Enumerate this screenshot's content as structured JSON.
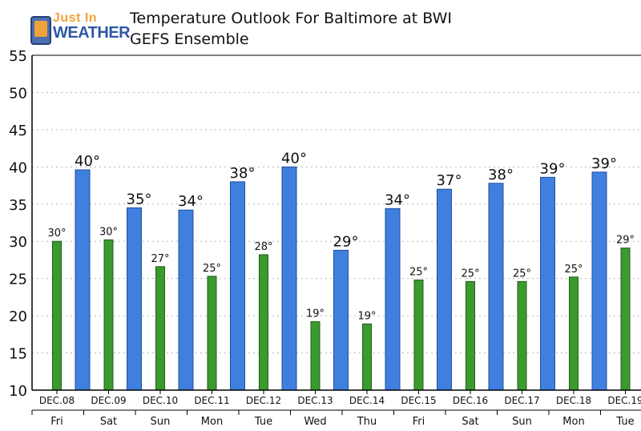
{
  "logo": {
    "line1": "Just In",
    "line2": "WEATHER"
  },
  "title": "Temperature Outlook For Baltimore at BWI",
  "subtitle": "GEFS Ensemble",
  "colors": {
    "high": "#3f7fe0",
    "low": "#3b9a2e",
    "high_edge": "#1f4fa0",
    "low_edge": "#1f5f17",
    "grid": "#b8b8b8",
    "axis": "#000000"
  },
  "chart_data": {
    "type": "bar",
    "title": "Temperature Outlook For Baltimore at BWI",
    "subtitle": "GEFS Ensemble",
    "ylim": [
      10,
      55
    ],
    "yticks": [
      10,
      15,
      20,
      25,
      30,
      35,
      40,
      45,
      50,
      55
    ],
    "grid": true,
    "categories": [
      "DEC.08",
      "DEC.09",
      "DEC.10",
      "DEC.11",
      "DEC.12",
      "DEC.13",
      "DEC.14",
      "DEC.15",
      "DEC.16",
      "DEC.17",
      "DEC.18",
      "DEC.19"
    ],
    "days": [
      "Fri",
      "Sat",
      "Sun",
      "Mon",
      "Tue",
      "Wed",
      "Thu",
      "Fri",
      "Sat",
      "Sun",
      "Mon",
      "Tue"
    ],
    "series": [
      {
        "values": [
          30,
          30.2,
          26.6,
          25.3,
          28.2,
          19.2,
          18.9,
          24.8,
          24.6,
          24.6,
          25.2,
          29.1
        ],
        "labels": [
          "30°",
          "30°",
          "27°",
          "25°",
          "28°",
          "19°",
          "19°",
          "25°",
          "25°",
          "25°",
          "25°",
          "29°"
        ]
      },
      {
        "values": [
          39.6,
          34.5,
          34.2,
          38.0,
          40.0,
          28.8,
          34.4,
          37.0,
          37.8,
          38.6,
          39.3,
          null
        ],
        "labels": [
          "40°",
          "35°",
          "34°",
          "38°",
          "40°",
          "29°",
          "34°",
          "37°",
          "38°",
          "39°",
          "39°",
          ""
        ]
      }
    ]
  }
}
